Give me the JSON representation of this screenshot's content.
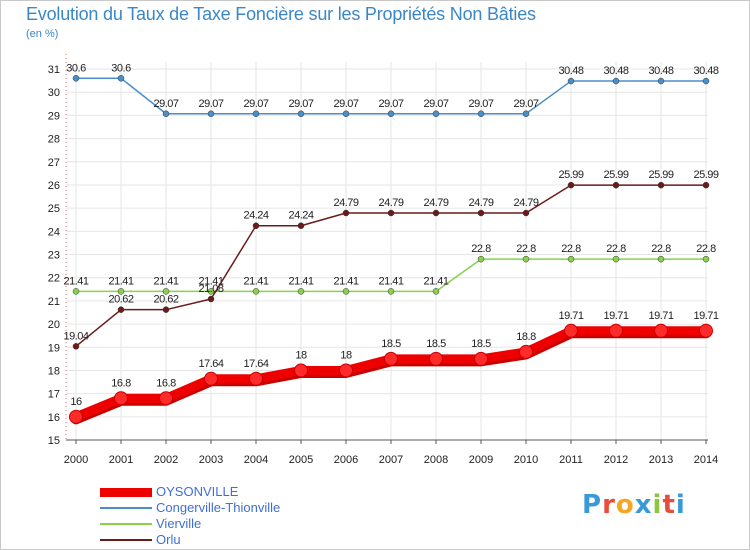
{
  "page": {
    "title": "Evolution du Taux de Taxe Foncière sur les Propriétés Non Bâties",
    "unit_label": "(en %)",
    "brand": "Proxiti"
  },
  "colors": {
    "title": "#3a87c8",
    "grid": "#e6e6e6",
    "axis_text": "#222222",
    "legend_text": "#3f6fd6"
  },
  "chart_data": {
    "type": "line",
    "title": "Evolution du Taux de Taxe Foncière sur les Propriétés Non Bâties",
    "ylabel": "(en %)",
    "xlabel": "",
    "x": [
      "2000",
      "2001",
      "2002",
      "2003",
      "2004",
      "2005",
      "2006",
      "2007",
      "2008",
      "2009",
      "2010",
      "2011",
      "2012",
      "2013",
      "2014"
    ],
    "ylim": [
      15,
      31
    ],
    "yticks": [
      15,
      16,
      17,
      18,
      19,
      20,
      21,
      22,
      23,
      24,
      25,
      26,
      27,
      28,
      29,
      30,
      31
    ],
    "grid": true,
    "legend_position": "bottom-left",
    "series": [
      {
        "name": "OYSONVILLE",
        "color": "#ee0000",
        "width": "thick",
        "values": [
          16,
          16.8,
          16.8,
          17.64,
          17.64,
          18,
          18,
          18.5,
          18.5,
          18.5,
          18.8,
          19.71,
          19.71,
          19.71,
          19.71
        ],
        "labels": [
          "16",
          "16.8",
          "16.8",
          "17.64",
          "17.64",
          "18",
          "18",
          "18.5",
          "18.5",
          "18.5",
          "18.8",
          "19.71",
          "19.71",
          "19.71",
          "19.71"
        ]
      },
      {
        "name": "Congerville-Thionville",
        "color": "#4a90c8",
        "width": "thin",
        "values": [
          30.6,
          30.6,
          29.07,
          29.07,
          29.07,
          29.07,
          29.07,
          29.07,
          29.07,
          29.07,
          29.07,
          30.48,
          30.48,
          30.48,
          30.48
        ],
        "labels": [
          "30.6",
          "30.6",
          "29.07",
          "29.07",
          "29.07",
          "29.07",
          "29.07",
          "29.07",
          "29.07",
          "29.07",
          "29.07",
          "30.48",
          "30.48",
          "30.48",
          "30.48"
        ]
      },
      {
        "name": "Vierville",
        "color": "#88d24a",
        "width": "thin",
        "values": [
          21.41,
          21.41,
          21.41,
          21.41,
          21.41,
          21.41,
          21.41,
          21.41,
          21.41,
          22.8,
          22.8,
          22.8,
          22.8,
          22.8,
          22.8
        ],
        "labels": [
          "21.41",
          "21.41",
          "21.41",
          "21.41",
          "21.41",
          "21.41",
          "21.41",
          "21.41",
          "21.41",
          "22.8",
          "22.8",
          "22.8",
          "22.8",
          "22.8",
          "22.8"
        ]
      },
      {
        "name": "Orlu",
        "color": "#6b1a1a",
        "width": "thin",
        "values": [
          19.04,
          20.62,
          20.62,
          21.08,
          24.24,
          24.24,
          24.79,
          24.79,
          24.79,
          24.79,
          24.79,
          25.99,
          25.99,
          25.99,
          25.99
        ],
        "labels": [
          "19.04",
          "20.62",
          "20.62",
          "21.08",
          "24.24",
          "24.24",
          "24.79",
          "24.79",
          "24.79",
          "24.79",
          "24.79",
          "25.99",
          "25.99",
          "25.99",
          "25.99"
        ]
      }
    ]
  }
}
